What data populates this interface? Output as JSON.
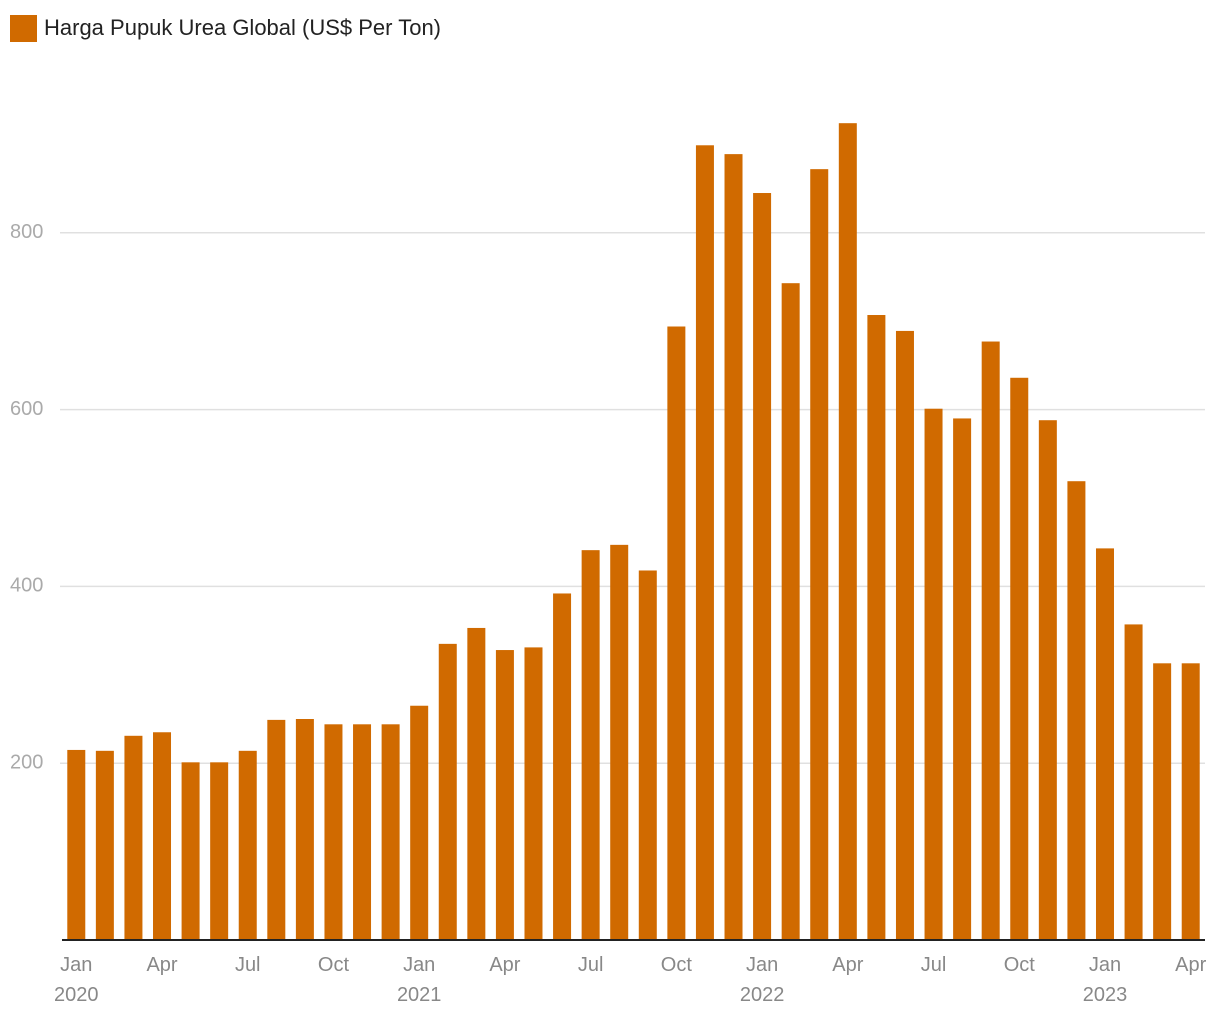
{
  "chart_data": {
    "type": "bar",
    "legend": "Harga Pupuk Urea Global (US$ Per Ton)",
    "color": "#d06a00",
    "categories": [
      "Jan 2020",
      null,
      null,
      "Apr",
      null,
      null,
      "Jul",
      null,
      null,
      "Oct",
      null,
      null,
      "Jan 2021",
      null,
      null,
      "Apr",
      null,
      null,
      "Jul",
      null,
      null,
      "Oct",
      null,
      null,
      "Jan 2022",
      null,
      null,
      "Apr",
      null,
      null,
      "Jul",
      null,
      null,
      "Oct",
      null,
      null,
      "Jan 2023",
      null,
      null,
      "Apr"
    ],
    "values": [
      215,
      214,
      231,
      235,
      201,
      201,
      214,
      249,
      250,
      244,
      244,
      244,
      265,
      335,
      353,
      328,
      331,
      392,
      441,
      447,
      418,
      694,
      899,
      889,
      845,
      743,
      872,
      924,
      707,
      689,
      601,
      590,
      677,
      636,
      588,
      519,
      443,
      357,
      313,
      313
    ],
    "ylim": [
      0,
      1000
    ],
    "yticks": [
      200,
      400,
      600,
      800
    ],
    "grid": true
  }
}
